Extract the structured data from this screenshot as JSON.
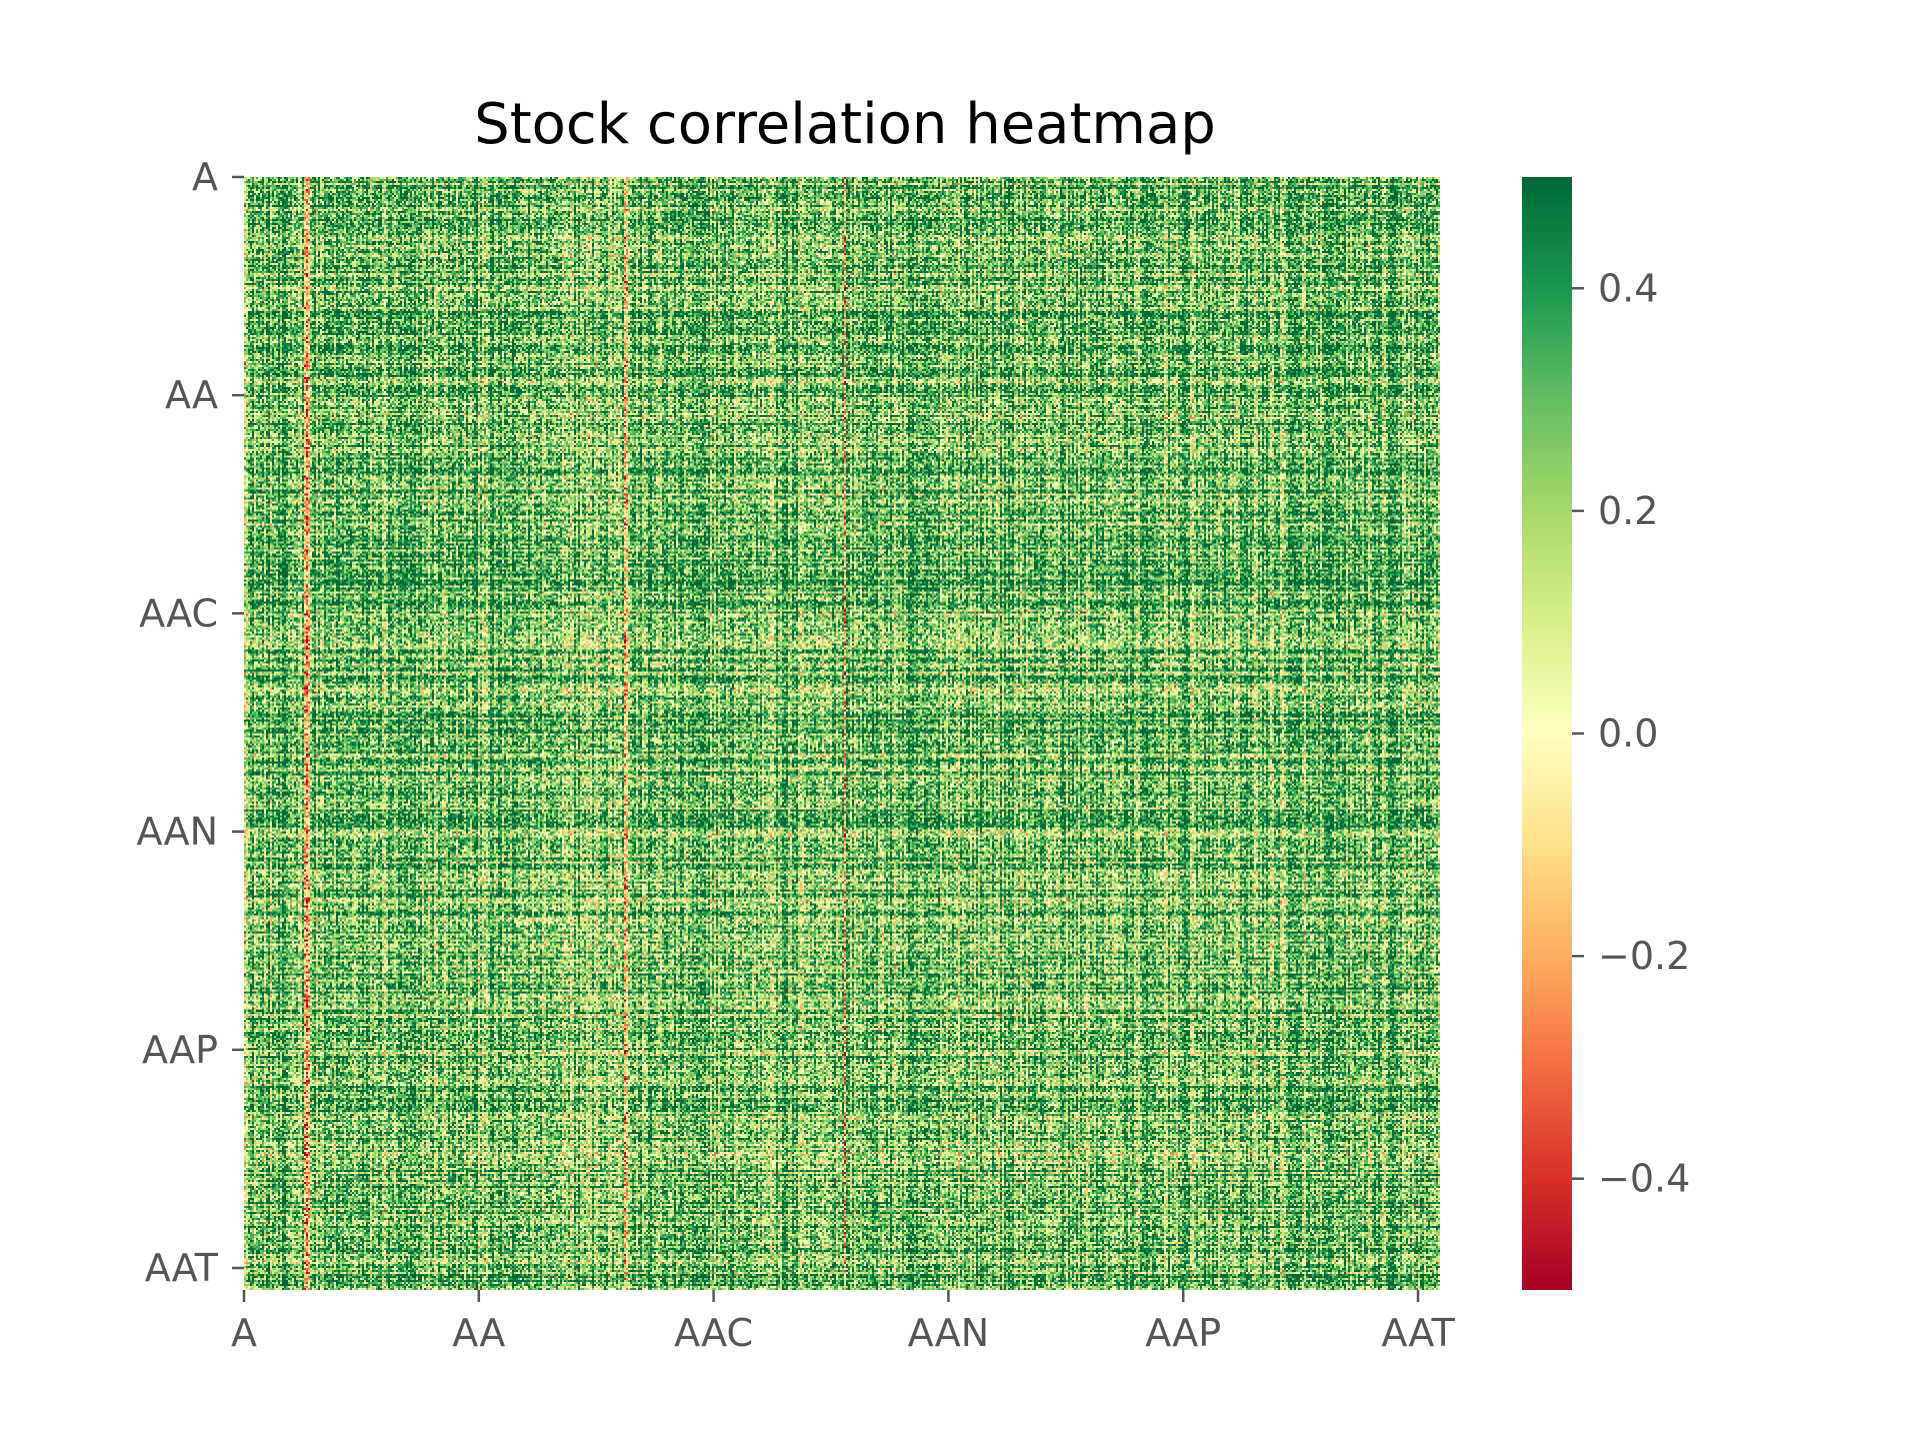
{
  "chart_data": {
    "type": "heatmap",
    "title": "Stock correlation heatmap",
    "xlabel": "",
    "ylabel": "",
    "x_tick_labels": [
      "A",
      "AA",
      "AAC",
      "AAN",
      "AAP",
      "AAT"
    ],
    "y_tick_labels": [
      "A",
      "AA",
      "AAC",
      "AAN",
      "AAP",
      "AAT"
    ],
    "colormap": "RdYlGn",
    "colorbar": {
      "vmin": -0.5,
      "vmax": 0.5,
      "ticks": [
        0.4,
        0.2,
        0.0,
        -0.2,
        -0.4
      ],
      "tick_labels": [
        "0.4",
        "0.2",
        "0.0",
        "−0.2",
        "−0.4"
      ]
    },
    "colors": {
      "low": "#a50026",
      "mid": "#ffffbf",
      "high": "#006837",
      "tick_text": "#555555"
    },
    "grid": false
  }
}
